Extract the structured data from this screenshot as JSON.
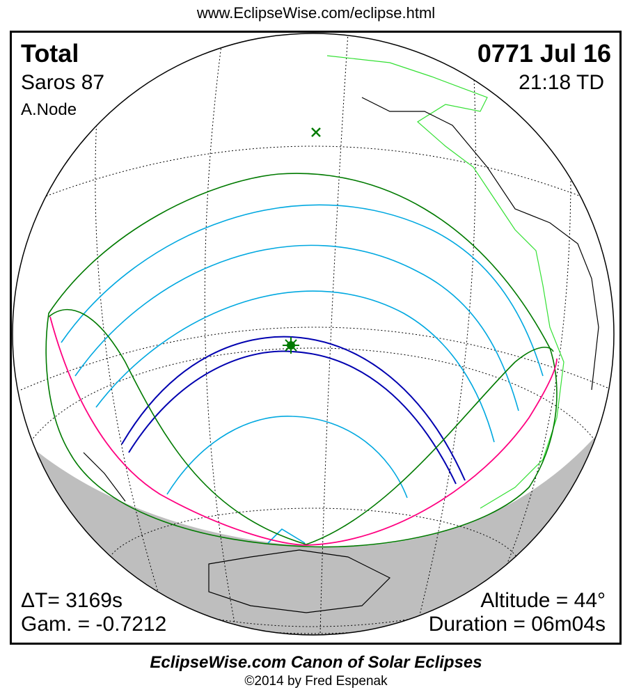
{
  "url": "www.EclipseWise.com/eclipse.html",
  "eclipse": {
    "type": "Total",
    "saros": "Saros  87",
    "node": "A.Node",
    "date": "0771 Jul 16",
    "time": "21:18 TD",
    "delta_t": "ΔT=   3169s",
    "gamma": "Gam. = -0.7212",
    "altitude": "Altitude = 44°",
    "duration": "Duration = 06m04s"
  },
  "footer": {
    "title": "EclipseWise.com Canon of Solar Eclipses",
    "copyright": "©2014 by Fred Espenak"
  },
  "colors": {
    "penumbral_limits": "#007a00",
    "partial_magnitude": "#00a8e0",
    "central_path": "#0000b0",
    "rise_set": "#ff0080",
    "night": "#bebebe",
    "coast_americas": "#33e033"
  },
  "markers": {
    "greatest_eclipse": "star-icon",
    "subsolar": "x-mark-icon"
  }
}
